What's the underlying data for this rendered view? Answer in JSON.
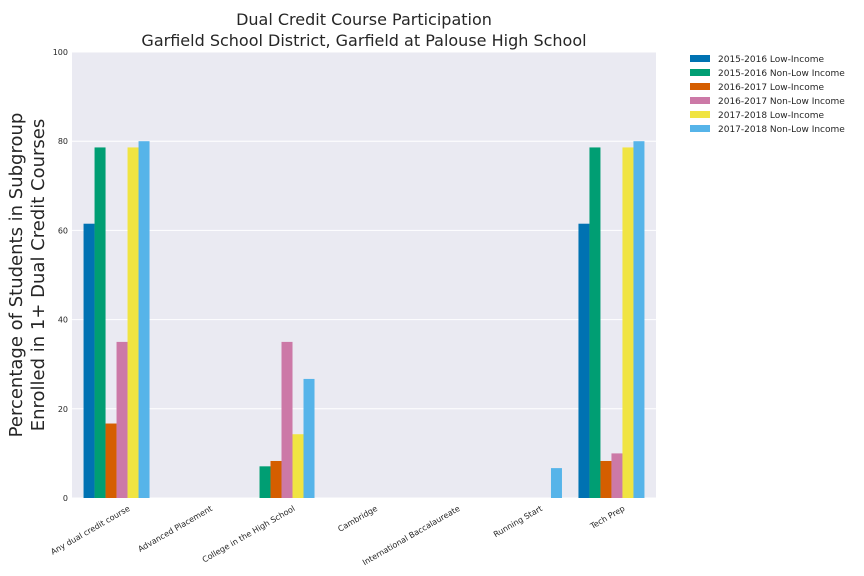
{
  "chart_data": {
    "type": "bar",
    "title": "Dual Credit Course Participation",
    "subtitle": "Garfield School District, Garfield at Palouse High School",
    "xlabel": "",
    "ylabel_line1": "Percentage of Students in Subgroup",
    "ylabel_line2": "Enrolled in 1+ Dual Credit Courses",
    "ylim": [
      0,
      100
    ],
    "yticks": [
      "0",
      "20",
      "40",
      "60",
      "80",
      "100"
    ],
    "grid": true,
    "legend_placement": "outside-top-right",
    "categories": [
      "Any dual credit course",
      "Advanced Placement",
      "College in the High School",
      "Cambridge",
      "International Baccalaureate",
      "Running Start",
      "Tech Prep"
    ],
    "series": [
      {
        "name": "2015-2016 Low-Income",
        "color": "#0072b2",
        "values": [
          61.5,
          0,
          0,
          0,
          0,
          0,
          61.5
        ]
      },
      {
        "name": "2015-2016 Non-Low Income",
        "color": "#009e73",
        "values": [
          78.6,
          0,
          7.1,
          0,
          0,
          0,
          78.6
        ]
      },
      {
        "name": "2016-2017 Low-Income",
        "color": "#d55e00",
        "values": [
          16.7,
          0,
          8.3,
          0,
          0,
          0,
          8.3
        ]
      },
      {
        "name": "2016-2017 Non-Low Income",
        "color": "#cc79a7",
        "values": [
          35.0,
          0,
          35.0,
          0,
          0,
          0,
          10.0
        ]
      },
      {
        "name": "2017-2018 Low-Income",
        "color": "#f0e442",
        "values": [
          78.6,
          0,
          14.3,
          0,
          0,
          0,
          78.6
        ]
      },
      {
        "name": "2017-2018 Non-Low Income",
        "color": "#56b4e9",
        "values": [
          80.0,
          0,
          26.7,
          0,
          0,
          6.7,
          80.0
        ]
      }
    ]
  }
}
